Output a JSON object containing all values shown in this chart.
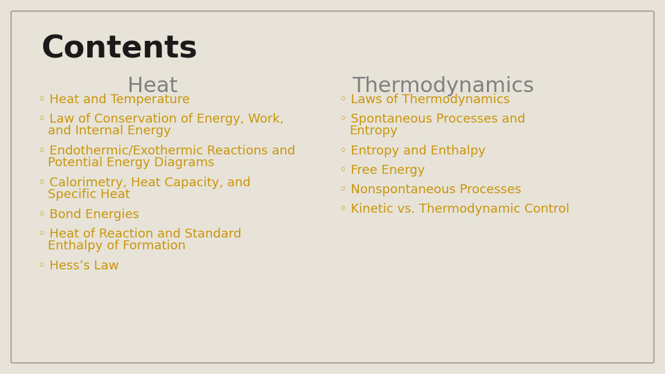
{
  "background_color": "#e8e3d8",
  "border_color": "#b0a898",
  "title": "Contents",
  "title_color": "#1a1a1a",
  "title_fontsize": 32,
  "title_fontweight": "bold",
  "col_header_color": "#808080",
  "col_header_fontsize": 22,
  "col1_header": "Heat",
  "col2_header": "Thermodynamics",
  "link_color": "#c8960c",
  "link_fontsize": 13,
  "bullet": "◦ ",
  "col1_items": [
    "Heat and Temperature",
    "Law of Conservation of Energy, Work,\nand Internal Energy",
    "Endothermic/Exothermic Reactions and\nPotential Energy Diagrams",
    "Calorimetry, Heat Capacity, and\nSpecific Heat",
    "Bond Energies",
    "Heat of Reaction and Standard\nEnthalpy of Formation",
    "Hess’s Law"
  ],
  "col2_items": [
    "Laws of Thermodynamics",
    "Spontaneous Processes and\nEntropy",
    "Entropy and Enthalpy",
    "Free Energy",
    "Nonspontaneous Processes",
    "Kinetic vs. Thermodynamic Control"
  ]
}
